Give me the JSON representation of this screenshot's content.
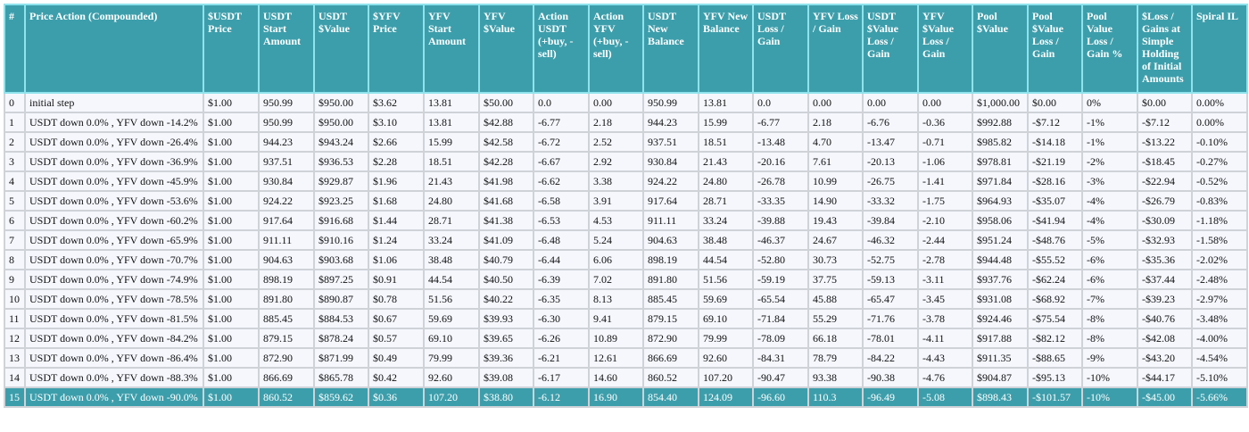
{
  "colors": {
    "header_bg": "#3d9eab",
    "row_bg": "#f5f7fd",
    "highlight_bg": "#3d9eab"
  },
  "headers": [
    "#",
    "Price Action (Compounded)",
    "$USDT Price",
    "USDT Start Amount",
    "USDT $Value",
    "$YFV Price",
    "YFV Start Amount",
    "YFV $Value",
    "Action USDT (+buy, -sell)",
    "Action YFV (+buy, -sell)",
    "USDT New Balance",
    "YFV New Balance",
    "USDT Loss / Gain",
    "YFV Loss / Gain",
    "USDT $Value Loss / Gain",
    "YFV $Value Loss / Gain",
    "Pool $Value",
    "Pool $Value Loss / Gain",
    "Pool Value Loss / Gain %",
    "$Loss / Gains at Simple Holding of Initial Amounts",
    "Spiral IL"
  ],
  "highlighted_row": 15,
  "rows": [
    [
      "0",
      "initial step",
      "$1.00",
      "950.99",
      "$950.00",
      "$3.62",
      "13.81",
      "$50.00",
      "0.0",
      "0.00",
      "950.99",
      "13.81",
      "0.0",
      "0.00",
      "0.00",
      "0.00",
      "$1,000.00",
      "$0.00",
      "0%",
      "$0.00",
      "0.00%"
    ],
    [
      "1",
      "USDT down 0.0% , YFV down -14.2%",
      "$1.00",
      "950.99",
      "$950.00",
      "$3.10",
      "13.81",
      "$42.88",
      "-6.77",
      "2.18",
      "944.23",
      "15.99",
      "-6.77",
      "2.18",
      "-6.76",
      "-0.36",
      "$992.88",
      "-$7.12",
      "-1%",
      "-$7.12",
      "0.00%"
    ],
    [
      "2",
      "USDT down 0.0% , YFV down -26.4%",
      "$1.00",
      "944.23",
      "$943.24",
      "$2.66",
      "15.99",
      "$42.58",
      "-6.72",
      "2.52",
      "937.51",
      "18.51",
      "-13.48",
      "4.70",
      "-13.47",
      "-0.71",
      "$985.82",
      "-$14.18",
      "-1%",
      "-$13.22",
      "-0.10%"
    ],
    [
      "3",
      "USDT down 0.0% , YFV down -36.9%",
      "$1.00",
      "937.51",
      "$936.53",
      "$2.28",
      "18.51",
      "$42.28",
      "-6.67",
      "2.92",
      "930.84",
      "21.43",
      "-20.16",
      "7.61",
      "-20.13",
      "-1.06",
      "$978.81",
      "-$21.19",
      "-2%",
      "-$18.45",
      "-0.27%"
    ],
    [
      "4",
      "USDT down 0.0% , YFV down -45.9%",
      "$1.00",
      "930.84",
      "$929.87",
      "$1.96",
      "21.43",
      "$41.98",
      "-6.62",
      "3.38",
      "924.22",
      "24.80",
      "-26.78",
      "10.99",
      "-26.75",
      "-1.41",
      "$971.84",
      "-$28.16",
      "-3%",
      "-$22.94",
      "-0.52%"
    ],
    [
      "5",
      "USDT down 0.0% , YFV down -53.6%",
      "$1.00",
      "924.22",
      "$923.25",
      "$1.68",
      "24.80",
      "$41.68",
      "-6.58",
      "3.91",
      "917.64",
      "28.71",
      "-33.35",
      "14.90",
      "-33.32",
      "-1.75",
      "$964.93",
      "-$35.07",
      "-4%",
      "-$26.79",
      "-0.83%"
    ],
    [
      "6",
      "USDT down 0.0% , YFV down -60.2%",
      "$1.00",
      "917.64",
      "$916.68",
      "$1.44",
      "28.71",
      "$41.38",
      "-6.53",
      "4.53",
      "911.11",
      "33.24",
      "-39.88",
      "19.43",
      "-39.84",
      "-2.10",
      "$958.06",
      "-$41.94",
      "-4%",
      "-$30.09",
      "-1.18%"
    ],
    [
      "7",
      "USDT down 0.0% , YFV down -65.9%",
      "$1.00",
      "911.11",
      "$910.16",
      "$1.24",
      "33.24",
      "$41.09",
      "-6.48",
      "5.24",
      "904.63",
      "38.48",
      "-46.37",
      "24.67",
      "-46.32",
      "-2.44",
      "$951.24",
      "-$48.76",
      "-5%",
      "-$32.93",
      "-1.58%"
    ],
    [
      "8",
      "USDT down 0.0% , YFV down -70.7%",
      "$1.00",
      "904.63",
      "$903.68",
      "$1.06",
      "38.48",
      "$40.79",
      "-6.44",
      "6.06",
      "898.19",
      "44.54",
      "-52.80",
      "30.73",
      "-52.75",
      "-2.78",
      "$944.48",
      "-$55.52",
      "-6%",
      "-$35.36",
      "-2.02%"
    ],
    [
      "9",
      "USDT down 0.0% , YFV down -74.9%",
      "$1.00",
      "898.19",
      "$897.25",
      "$0.91",
      "44.54",
      "$40.50",
      "-6.39",
      "7.02",
      "891.80",
      "51.56",
      "-59.19",
      "37.75",
      "-59.13",
      "-3.11",
      "$937.76",
      "-$62.24",
      "-6%",
      "-$37.44",
      "-2.48%"
    ],
    [
      "10",
      "USDT down 0.0% , YFV down -78.5%",
      "$1.00",
      "891.80",
      "$890.87",
      "$0.78",
      "51.56",
      "$40.22",
      "-6.35",
      "8.13",
      "885.45",
      "59.69",
      "-65.54",
      "45.88",
      "-65.47",
      "-3.45",
      "$931.08",
      "-$68.92",
      "-7%",
      "-$39.23",
      "-2.97%"
    ],
    [
      "11",
      "USDT down 0.0% , YFV down -81.5%",
      "$1.00",
      "885.45",
      "$884.53",
      "$0.67",
      "59.69",
      "$39.93",
      "-6.30",
      "9.41",
      "879.15",
      "69.10",
      "-71.84",
      "55.29",
      "-71.76",
      "-3.78",
      "$924.46",
      "-$75.54",
      "-8%",
      "-$40.76",
      "-3.48%"
    ],
    [
      "12",
      "USDT down 0.0% , YFV down -84.2%",
      "$1.00",
      "879.15",
      "$878.24",
      "$0.57",
      "69.10",
      "$39.65",
      "-6.26",
      "10.89",
      "872.90",
      "79.99",
      "-78.09",
      "66.18",
      "-78.01",
      "-4.11",
      "$917.88",
      "-$82.12",
      "-8%",
      "-$42.08",
      "-4.00%"
    ],
    [
      "13",
      "USDT down 0.0% , YFV down -86.4%",
      "$1.00",
      "872.90",
      "$871.99",
      "$0.49",
      "79.99",
      "$39.36",
      "-6.21",
      "12.61",
      "866.69",
      "92.60",
      "-84.31",
      "78.79",
      "-84.22",
      "-4.43",
      "$911.35",
      "-$88.65",
      "-9%",
      "-$43.20",
      "-4.54%"
    ],
    [
      "14",
      "USDT down 0.0% , YFV down -88.3%",
      "$1.00",
      "866.69",
      "$865.78",
      "$0.42",
      "92.60",
      "$39.08",
      "-6.17",
      "14.60",
      "860.52",
      "107.20",
      "-90.47",
      "93.38",
      "-90.38",
      "-4.76",
      "$904.87",
      "-$95.13",
      "-10%",
      "-$44.17",
      "-5.10%"
    ],
    [
      "15",
      "USDT down 0.0% , YFV down -90.0%",
      "$1.00",
      "860.52",
      "$859.62",
      "$0.36",
      "107.20",
      "$38.80",
      "-6.12",
      "16.90",
      "854.40",
      "124.09",
      "-96.60",
      "110.3",
      "-96.49",
      "-5.08",
      "$898.43",
      "-$101.57",
      "-10%",
      "-$45.00",
      "-5.66%"
    ]
  ]
}
